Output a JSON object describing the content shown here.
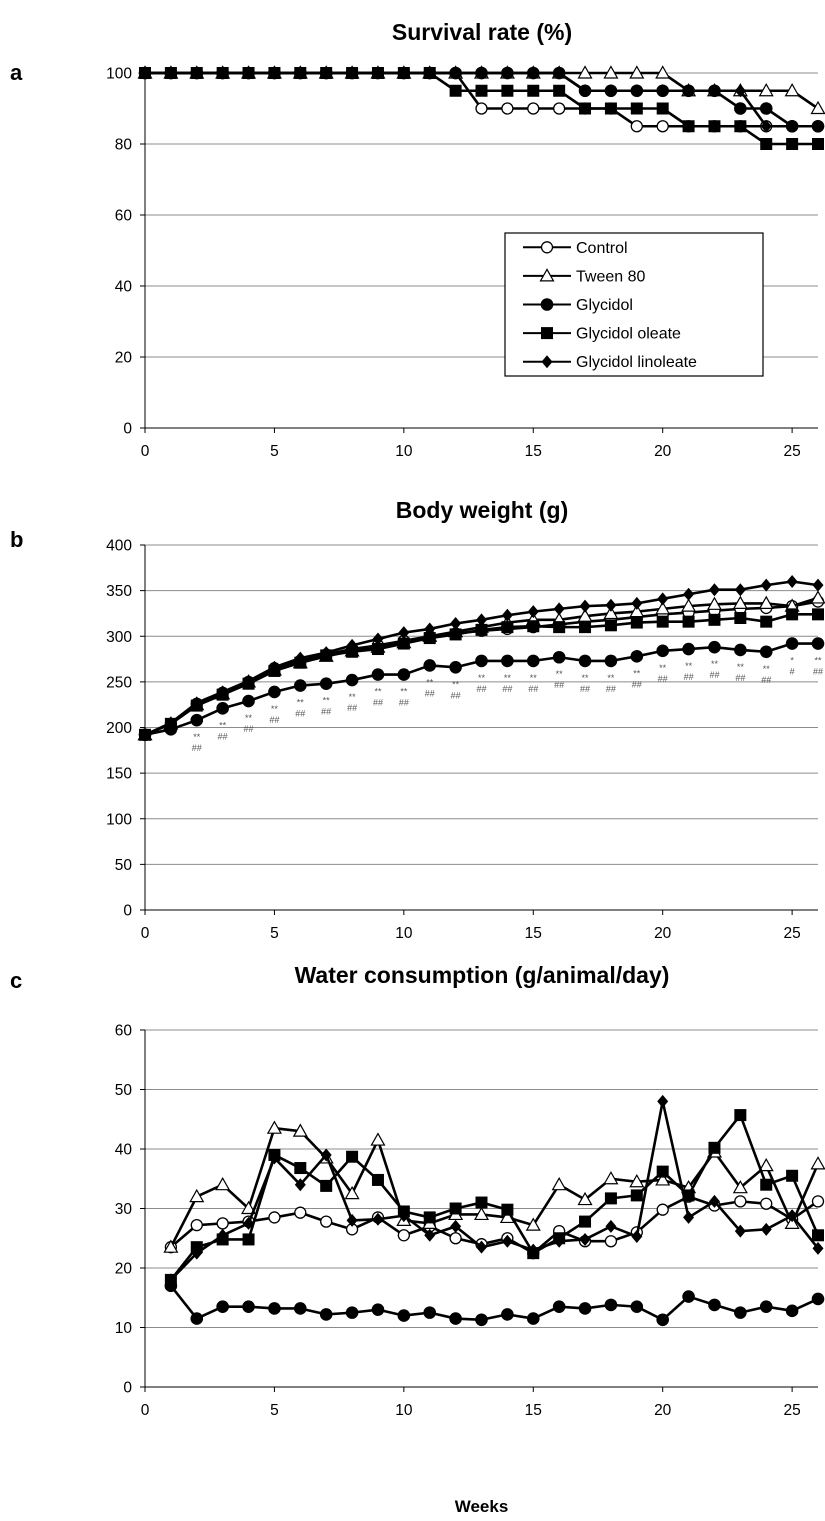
{
  "chart_data": [
    {
      "panel": "a",
      "type": "line",
      "title": "Survival rate (%)",
      "xlabel": "",
      "ylabel": "",
      "xlim": [
        0,
        26
      ],
      "ylim": [
        0,
        100
      ],
      "yticks": [
        0,
        20,
        40,
        60,
        80,
        100
      ],
      "xticks": [
        0,
        5,
        10,
        15,
        20,
        25
      ],
      "grid": "horizontal",
      "legend": {
        "placement": "center-right"
      },
      "series": [
        {
          "name": "Control",
          "marker": "open-circle",
          "x": [
            0,
            1,
            2,
            3,
            4,
            5,
            6,
            7,
            8,
            9,
            10,
            11,
            12,
            13,
            14,
            15,
            16,
            17,
            18,
            19,
            20,
            21,
            22,
            23,
            24,
            25,
            26
          ],
          "values": [
            100,
            100,
            100,
            100,
            100,
            100,
            100,
            100,
            100,
            100,
            100,
            100,
            100,
            90,
            90,
            90,
            90,
            90,
            90,
            85,
            85,
            85,
            85,
            85,
            85,
            85,
            85
          ]
        },
        {
          "name": "Tween 80",
          "marker": "open-triangle",
          "x": [
            0,
            1,
            2,
            3,
            4,
            5,
            6,
            7,
            8,
            9,
            10,
            11,
            12,
            13,
            14,
            15,
            16,
            17,
            18,
            19,
            20,
            21,
            22,
            23,
            24,
            25,
            26
          ],
          "values": [
            100,
            100,
            100,
            100,
            100,
            100,
            100,
            100,
            100,
            100,
            100,
            100,
            100,
            100,
            100,
            100,
            100,
            100,
            100,
            100,
            100,
            95,
            95,
            95,
            95,
            95,
            90
          ]
        },
        {
          "name": "Glycidol",
          "marker": "filled-circle",
          "x": [
            0,
            1,
            2,
            3,
            4,
            5,
            6,
            7,
            8,
            9,
            10,
            11,
            12,
            13,
            14,
            15,
            16,
            17,
            18,
            19,
            20,
            21,
            22,
            23,
            24,
            25,
            26
          ],
          "values": [
            100,
            100,
            100,
            100,
            100,
            100,
            100,
            100,
            100,
            100,
            100,
            100,
            100,
            100,
            100,
            100,
            100,
            95,
            95,
            95,
            95,
            95,
            95,
            90,
            90,
            85,
            85
          ]
        },
        {
          "name": "Glycidol oleate",
          "marker": "filled-square",
          "x": [
            0,
            1,
            2,
            3,
            4,
            5,
            6,
            7,
            8,
            9,
            10,
            11,
            12,
            13,
            14,
            15,
            16,
            17,
            18,
            19,
            20,
            21,
            22,
            23,
            24,
            25,
            26
          ],
          "values": [
            100,
            100,
            100,
            100,
            100,
            100,
            100,
            100,
            100,
            100,
            100,
            100,
            95,
            95,
            95,
            95,
            95,
            90,
            90,
            90,
            90,
            85,
            85,
            85,
            80,
            80,
            80
          ]
        },
        {
          "name": "Glycidol linoleate",
          "marker": "filled-diamond",
          "x": [
            0,
            1,
            2,
            3,
            4,
            5,
            6,
            7,
            8,
            9,
            10,
            11,
            12,
            13,
            14,
            15,
            16,
            17,
            18,
            19,
            20,
            21,
            22,
            23,
            24,
            25,
            26
          ],
          "values": [
            100,
            100,
            100,
            100,
            100,
            100,
            100,
            100,
            100,
            100,
            100,
            100,
            100,
            100,
            100,
            100,
            100,
            95,
            95,
            95,
            95,
            95,
            95,
            95,
            85,
            85,
            85
          ]
        }
      ]
    },
    {
      "panel": "b",
      "type": "line",
      "title": "Body weight (g)",
      "xlabel": "",
      "ylabel": "",
      "xlim": [
        0,
        26
      ],
      "ylim": [
        0,
        400
      ],
      "yticks": [
        0,
        50,
        100,
        150,
        200,
        250,
        300,
        350,
        400
      ],
      "xticks": [
        0,
        5,
        10,
        15,
        20,
        25
      ],
      "grid": "horizontal",
      "series": [
        {
          "name": "Control",
          "marker": "open-circle",
          "x": [
            0,
            1,
            2,
            3,
            4,
            5,
            6,
            7,
            8,
            9,
            10,
            11,
            12,
            13,
            14,
            15,
            16,
            17,
            18,
            19,
            20,
            21,
            22,
            23,
            24,
            25,
            26
          ],
          "values": [
            192,
            204,
            226,
            238,
            250,
            265,
            273,
            280,
            286,
            290,
            295,
            300,
            303,
            306,
            308,
            310,
            313,
            316,
            318,
            321,
            324,
            326,
            328,
            330,
            331,
            333,
            338
          ]
        },
        {
          "name": "Tween 80",
          "marker": "open-triangle",
          "x": [
            0,
            1,
            2,
            3,
            4,
            5,
            6,
            7,
            8,
            9,
            10,
            11,
            12,
            13,
            14,
            15,
            16,
            17,
            18,
            19,
            20,
            21,
            22,
            23,
            24,
            25,
            26
          ],
          "values": [
            192,
            204,
            225,
            237,
            250,
            263,
            271,
            278,
            284,
            288,
            293,
            300,
            305,
            310,
            315,
            318,
            318,
            322,
            325,
            327,
            330,
            333,
            335,
            336,
            336,
            333,
            342
          ]
        },
        {
          "name": "Glycidol",
          "marker": "filled-circle",
          "x": [
            0,
            1,
            2,
            3,
            4,
            5,
            6,
            7,
            8,
            9,
            10,
            11,
            12,
            13,
            14,
            15,
            16,
            17,
            18,
            19,
            20,
            21,
            22,
            23,
            24,
            25,
            26
          ],
          "values": [
            192,
            198,
            208,
            221,
            229,
            239,
            246,
            248,
            252,
            258,
            258,
            268,
            266,
            273,
            273,
            273,
            277,
            273,
            273,
            278,
            284,
            286,
            288,
            285,
            283,
            292,
            292
          ]
        },
        {
          "name": "Glycidol oleate",
          "marker": "filled-square",
          "x": [
            0,
            1,
            2,
            3,
            4,
            5,
            6,
            7,
            8,
            9,
            10,
            11,
            12,
            13,
            14,
            15,
            16,
            17,
            18,
            19,
            20,
            21,
            22,
            23,
            24,
            25,
            26
          ],
          "values": [
            192,
            204,
            224,
            236,
            248,
            262,
            271,
            279,
            283,
            286,
            292,
            298,
            302,
            307,
            310,
            311,
            310,
            310,
            312,
            315,
            316,
            316,
            318,
            320,
            316,
            324,
            324
          ]
        },
        {
          "name": "Glycidol linoleate",
          "marker": "filled-diamond",
          "x": [
            0,
            1,
            2,
            3,
            4,
            5,
            6,
            7,
            8,
            9,
            10,
            11,
            12,
            13,
            14,
            15,
            16,
            17,
            18,
            19,
            20,
            21,
            22,
            23,
            24,
            25,
            26
          ],
          "values": [
            192,
            205,
            227,
            239,
            251,
            266,
            276,
            282,
            290,
            297,
            304,
            308,
            314,
            318,
            323,
            327,
            330,
            333,
            334,
            336,
            341,
            346,
            351,
            351,
            356,
            360,
            356
          ]
        }
      ],
      "annotations": [
        {
          "x": 2,
          "top": "**",
          "bottom": "##"
        },
        {
          "x": 3,
          "top": "**",
          "bottom": "##"
        },
        {
          "x": 4,
          "top": "**",
          "bottom": "##"
        },
        {
          "x": 5,
          "top": "**",
          "bottom": "##"
        },
        {
          "x": 6,
          "top": "**",
          "bottom": "##"
        },
        {
          "x": 7,
          "top": "**",
          "bottom": "##"
        },
        {
          "x": 8,
          "top": "**",
          "bottom": "##"
        },
        {
          "x": 9,
          "top": "**",
          "bottom": "##"
        },
        {
          "x": 10,
          "top": "**",
          "bottom": "##"
        },
        {
          "x": 11,
          "top": "**",
          "bottom": "##"
        },
        {
          "x": 12,
          "top": "**",
          "bottom": "##"
        },
        {
          "x": 13,
          "top": "**",
          "bottom": "##"
        },
        {
          "x": 14,
          "top": "**",
          "bottom": "##"
        },
        {
          "x": 15,
          "top": "**",
          "bottom": "##"
        },
        {
          "x": 16,
          "top": "**",
          "bottom": "##"
        },
        {
          "x": 17,
          "top": "**",
          "bottom": "##"
        },
        {
          "x": 18,
          "top": "**",
          "bottom": "##"
        },
        {
          "x": 19,
          "top": "**",
          "bottom": "##"
        },
        {
          "x": 20,
          "top": "**",
          "bottom": "##"
        },
        {
          "x": 21,
          "top": "**",
          "bottom": "##"
        },
        {
          "x": 22,
          "top": "**",
          "bottom": "##"
        },
        {
          "x": 23,
          "top": "**",
          "bottom": "##"
        },
        {
          "x": 24,
          "top": "**",
          "bottom": "##"
        },
        {
          "x": 25,
          "top": "*",
          "bottom": "#"
        },
        {
          "x": 26,
          "top": "**",
          "bottom": "##"
        }
      ]
    },
    {
      "panel": "c",
      "type": "line",
      "title": "Water consumption (g/animal/day)",
      "xlabel": "Weeks",
      "ylabel": "",
      "xlim": [
        0,
        26
      ],
      "ylim": [
        0,
        60
      ],
      "yticks": [
        0,
        10,
        20,
        30,
        40,
        50,
        60
      ],
      "xticks": [
        0,
        5,
        10,
        15,
        20,
        25
      ],
      "grid": "horizontal",
      "series": [
        {
          "name": "Control",
          "marker": "open-circle",
          "x": [
            1,
            2,
            3,
            4,
            5,
            6,
            7,
            8,
            9,
            10,
            11,
            12,
            13,
            14,
            15,
            16,
            17,
            18,
            19,
            20,
            21,
            22,
            23,
            24,
            25,
            26
          ],
          "values": [
            23.5,
            27.2,
            27.5,
            27.8,
            28.5,
            29.3,
            27.8,
            26.5,
            28.5,
            25.5,
            27,
            25,
            24,
            25,
            22.5,
            26.2,
            24.5,
            24.5,
            26,
            29.8,
            32,
            30.5,
            31.2,
            30.8,
            28.2,
            31.2
          ]
        },
        {
          "name": "Tween 80",
          "marker": "open-triangle",
          "x": [
            1,
            2,
            3,
            4,
            5,
            6,
            7,
            8,
            9,
            10,
            11,
            12,
            13,
            14,
            15,
            16,
            17,
            18,
            19,
            20,
            21,
            22,
            23,
            24,
            25,
            26
          ],
          "values": [
            23.5,
            32,
            34,
            30,
            43.5,
            43,
            38.5,
            32.5,
            41.5,
            28,
            27.5,
            29,
            29,
            28.5,
            27.2,
            34,
            31.5,
            35,
            34.5,
            34.8,
            33.5,
            39.5,
            33.5,
            37.2,
            27.5,
            37.5
          ]
        },
        {
          "name": "Glycidol",
          "marker": "filled-circle",
          "x": [
            1,
            2,
            3,
            4,
            5,
            6,
            7,
            8,
            9,
            10,
            11,
            12,
            13,
            14,
            15,
            16,
            17,
            18,
            19,
            20,
            21,
            22,
            23,
            24,
            25,
            26
          ],
          "values": [
            17,
            11.5,
            13.5,
            13.5,
            13.2,
            13.2,
            12.2,
            12.5,
            13,
            12,
            12.5,
            11.5,
            11.3,
            12.2,
            11.5,
            13.5,
            13.2,
            13.8,
            13.5,
            11.3,
            15.2,
            13.8,
            12.5,
            13.5,
            12.8,
            14.8
          ]
        },
        {
          "name": "Glycidol oleate",
          "marker": "filled-square",
          "x": [
            1,
            2,
            3,
            4,
            5,
            6,
            7,
            8,
            9,
            10,
            11,
            12,
            13,
            14,
            15,
            16,
            17,
            18,
            19,
            20,
            21,
            22,
            23,
            24,
            25,
            26
          ],
          "values": [
            18,
            23.5,
            24.8,
            24.8,
            39,
            36.8,
            33.8,
            38.7,
            34.8,
            29.5,
            28.5,
            30,
            31,
            29.8,
            22.5,
            25,
            27.8,
            31.7,
            32.2,
            36.2,
            32.2,
            40.2,
            45.7,
            34,
            35.5,
            25.5
          ]
        },
        {
          "name": "Glycidol linoleate",
          "marker": "filled-diamond",
          "x": [
            1,
            2,
            3,
            4,
            5,
            6,
            7,
            8,
            9,
            10,
            11,
            12,
            13,
            14,
            15,
            16,
            17,
            18,
            19,
            20,
            21,
            22,
            23,
            24,
            25,
            26
          ],
          "values": [
            18,
            22.5,
            25.5,
            27.5,
            38.5,
            34,
            39,
            28,
            28.2,
            28.8,
            25.5,
            27,
            23.5,
            24.5,
            23,
            24.5,
            24.8,
            27,
            25.3,
            48,
            28.5,
            31.2,
            26.2,
            26.5,
            28.8,
            23.3
          ]
        }
      ]
    }
  ],
  "panels": {
    "a": {
      "letter": "a"
    },
    "b": {
      "letter": "b"
    },
    "c": {
      "letter": "c"
    }
  }
}
